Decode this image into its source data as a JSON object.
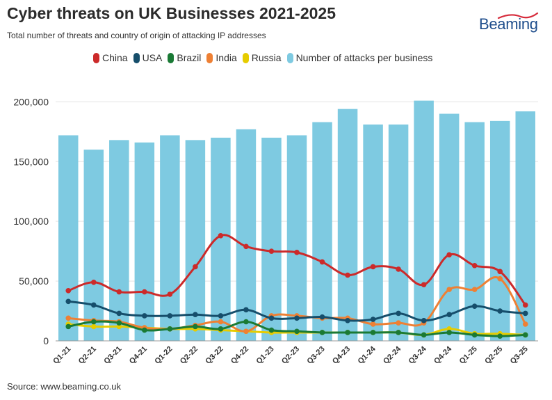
{
  "header": {
    "title": "Cyber threats on UK Businesses 2021-2025",
    "subtitle": "Total number of threats and country of origin of attacking IP addresses"
  },
  "brand": {
    "name": "Beaming",
    "text_color": "#1f4e8c",
    "swoosh_color": "#d62a3a"
  },
  "footer": {
    "source": "Source: www.beaming.co.uk"
  },
  "chart_data": {
    "type": "bar",
    "categories": [
      "Q1-21",
      "Q2-21",
      "Q3-21",
      "Q4-21",
      "Q1-22",
      "Q2-22",
      "Q3-22",
      "Q4-22",
      "Q1-23",
      "Q2-23",
      "Q3-23",
      "Q4-23",
      "Q1-24",
      "Q2-24",
      "Q3-24",
      "Q4-24",
      "Q1-25",
      "Q2-25",
      "Q3-25"
    ],
    "y_ticks": [
      "0",
      "50,000",
      "100,000",
      "150,000",
      "200,000"
    ],
    "ylim": [
      0,
      220000
    ],
    "grid": true,
    "legend_position": "top",
    "series": [
      {
        "name": "China",
        "kind": "line",
        "color": "#cc2a2a",
        "values": [
          42000,
          49000,
          41000,
          41000,
          39000,
          62000,
          88000,
          79000,
          75000,
          74000,
          66000,
          55000,
          62000,
          60000,
          47000,
          72000,
          63000,
          58000,
          30000
        ]
      },
      {
        "name": "USA",
        "kind": "line",
        "color": "#164e6b",
        "values": [
          33000,
          30000,
          23000,
          21000,
          21000,
          22000,
          21000,
          26000,
          19000,
          19000,
          20000,
          17000,
          18000,
          23000,
          17000,
          22000,
          29000,
          25000,
          23000
        ]
      },
      {
        "name": "Brazil",
        "kind": "line",
        "color": "#1a7a35",
        "values": [
          12000,
          16000,
          15000,
          9000,
          10000,
          12000,
          10000,
          16000,
          9000,
          8000,
          7000,
          7000,
          7000,
          7000,
          5000,
          7000,
          5000,
          4000,
          5000
        ]
      },
      {
        "name": "India",
        "kind": "line",
        "color": "#ee8034",
        "values": [
          19000,
          17000,
          16000,
          11000,
          10000,
          13000,
          16000,
          8000,
          21000,
          21000,
          19000,
          19000,
          14000,
          15000,
          15000,
          43000,
          43000,
          52000,
          14000
        ]
      },
      {
        "name": "Russia",
        "kind": "line",
        "color": "#e6cc00",
        "values": [
          14000,
          12000,
          12000,
          11000,
          10000,
          10000,
          9000,
          8000,
          7000,
          7000,
          7000,
          7000,
          7000,
          7000,
          5000,
          10000,
          6000,
          6000,
          5000
        ]
      },
      {
        "name": "Number of attacks per business",
        "kind": "bar",
        "color": "#7ecae1",
        "values": [
          172000,
          160000,
          168000,
          166000,
          172000,
          168000,
          170000,
          177000,
          170000,
          172000,
          183000,
          194000,
          181000,
          181000,
          201000,
          190000,
          183000,
          184000,
          192000
        ]
      }
    ]
  }
}
